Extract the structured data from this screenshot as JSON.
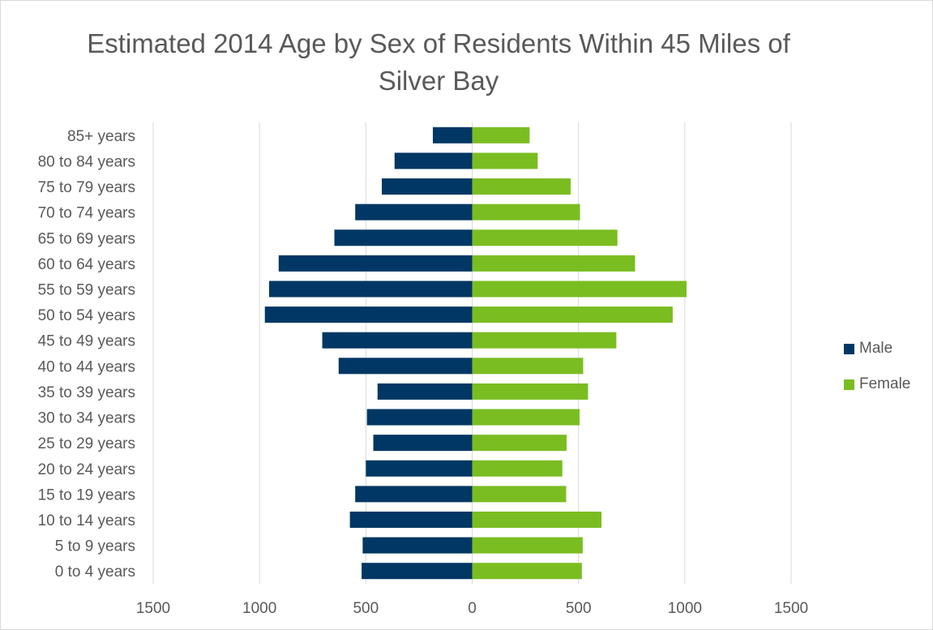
{
  "chart_data": {
    "type": "bar",
    "orientation": "horizontal",
    "title": "Estimated 2014 Age by Sex of Residents Within 45 Miles of Silver Bay",
    "categories": [
      "85+ years",
      "80 to 84 years",
      "75 to 79 years",
      "70 to 74 years",
      "65 to 69 years",
      "60 to 64 years",
      "55 to 59 years",
      "50 to 54 years",
      "45 to 49 years",
      "40 to 44 years",
      "35 to 39 years",
      "30 to 34 years",
      "25 to 29 years",
      "20 to 24 years",
      "15 to 19 years",
      "10 to 14 years",
      "5 to 9 years",
      "0 to 4 years"
    ],
    "series": [
      {
        "name": "Male",
        "color": "#003764",
        "values": [
          -185,
          -365,
          -425,
          -550,
          -648,
          -910,
          -955,
          -975,
          -705,
          -628,
          -445,
          -495,
          -465,
          -500,
          -550,
          -575,
          -515,
          -520
        ]
      },
      {
        "name": "Female",
        "color": "#7ABD21",
        "values": [
          270,
          308,
          463,
          507,
          683,
          766,
          1008,
          943,
          678,
          522,
          545,
          505,
          444,
          424,
          442,
          608,
          520,
          516
        ]
      }
    ],
    "xlim": [
      -1500,
      1500
    ],
    "xticks": [
      -1500,
      -1000,
      -500,
      0,
      500,
      1000,
      1500
    ],
    "xtick_labels": [
      "1500",
      "1000",
      "500",
      "0",
      "500",
      "1000",
      "1500"
    ],
    "grid": true,
    "legend_position": "right"
  }
}
